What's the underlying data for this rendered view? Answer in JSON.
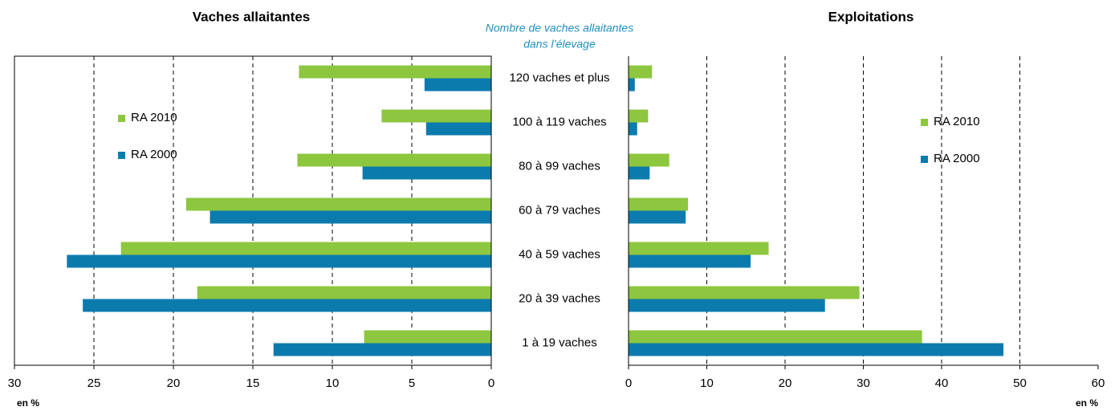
{
  "chart_data": [
    {
      "type": "bar",
      "title": "Vaches allaitantes",
      "annotation": [
        "Nombre de vaches allaitantes",
        "dans l’élevage"
      ],
      "categories": [
        "120 vaches et plus",
        "100 à 119 vaches",
        "80 à 99 vaches",
        "60 à 79 vaches",
        "40 à 59 vaches",
        "20 à 39 vaches",
        "1 à 19 vaches"
      ],
      "series": [
        {
          "name": "RA 2010",
          "color": "#8dc63f",
          "values": [
            12.1,
            6.9,
            12.2,
            19.2,
            23.3,
            18.5,
            8.0
          ]
        },
        {
          "name": "RA 2000",
          "color": "#0b7bae",
          "values": [
            4.2,
            4.1,
            8.1,
            17.7,
            26.7,
            25.7,
            13.7
          ]
        }
      ],
      "xlim": [
        30,
        0
      ],
      "xticks": [
        30,
        25,
        20,
        15,
        10,
        5,
        0
      ],
      "x_label": "en %",
      "grid": true
    },
    {
      "type": "bar",
      "title": "Exploitations",
      "series": [
        {
          "name": "RA 2010",
          "color": "#8dc63f",
          "values": [
            3.0,
            2.5,
            5.2,
            7.6,
            17.9,
            29.5,
            37.5
          ]
        },
        {
          "name": "RA 2000",
          "color": "#0b7bae",
          "values": [
            0.8,
            1.1,
            2.7,
            7.3,
            15.6,
            25.1,
            47.9
          ]
        }
      ],
      "xlim": [
        0,
        60
      ],
      "xticks": [
        0,
        10,
        20,
        30,
        40,
        50,
        60
      ],
      "x_label": "en %",
      "grid": true
    }
  ]
}
